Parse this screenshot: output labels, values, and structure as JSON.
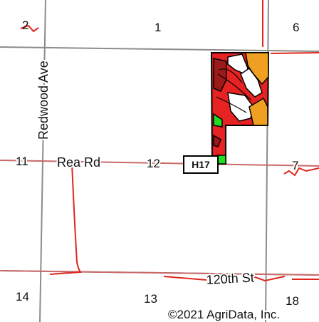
{
  "map": {
    "sections": [
      "2",
      "1",
      "6",
      "11",
      "12",
      "7",
      "14",
      "13",
      "18"
    ],
    "roads": {
      "redwood": "Redwood Ave",
      "rea": "Rea Rd",
      "st120": "120th St"
    },
    "marker": "H17",
    "copyright": "©2021 AgriData, Inc.",
    "colors": {
      "section_line": "#8c8c8c",
      "road_line": "#c96a6a",
      "red_boundary": "#e0261e",
      "soil_red": "#e62222",
      "soil_orange": "#f0a020",
      "soil_green": "#22dd22",
      "soil_darkred": "#9c1a1a"
    }
  }
}
